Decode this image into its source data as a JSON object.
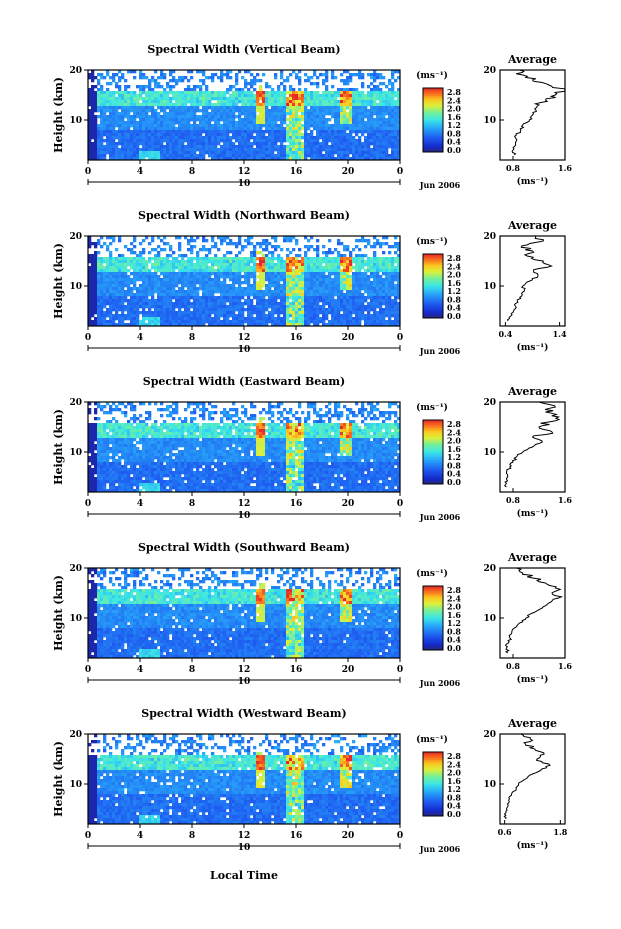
{
  "figure": {
    "xlabel": "Local Time",
    "date_label": "Jun 2006",
    "day_label": "10",
    "height_label": "Height (km)",
    "unit_label": "(ms⁻¹)",
    "average_title": "Average",
    "average_unit": "(ms⁻¹)"
  },
  "chart_data": [
    {
      "type": "heatmap",
      "title": "Spectral Width (Vertical Beam)",
      "ylabel": "Height (km)",
      "x_ticks": [
        "0",
        "4",
        "8",
        "12",
        "16",
        "20",
        "0"
      ],
      "y_ticks": [
        "10",
        "20"
      ],
      "xlim": [
        0,
        24
      ],
      "ylim": [
        2,
        20
      ],
      "colorbar": {
        "unit": "(ms⁻¹)",
        "ticks": [
          "2.8",
          "2.4",
          "2.0",
          "1.6",
          "1.2",
          "0.8",
          "0.4",
          "0.0"
        ],
        "range": [
          0,
          3.0
        ]
      },
      "average": {
        "title": "Average",
        "xlabel": "(ms⁻¹)",
        "x_ticks": [
          "0.8",
          "1.6"
        ],
        "xlim": [
          0.6,
          1.6
        ],
        "y_ticks": [
          "10",
          "20"
        ],
        "ylim": [
          2,
          20
        ],
        "profile": [
          [
            0.82,
            3
          ],
          [
            0.8,
            4
          ],
          [
            0.84,
            5
          ],
          [
            0.86,
            6
          ],
          [
            0.85,
            7
          ],
          [
            0.92,
            8
          ],
          [
            0.95,
            9
          ],
          [
            1.05,
            10
          ],
          [
            1.1,
            11
          ],
          [
            1.15,
            12
          ],
          [
            1.2,
            13
          ],
          [
            1.3,
            14
          ],
          [
            1.45,
            15
          ],
          [
            1.6,
            16
          ],
          [
            1.35,
            17
          ],
          [
            1.1,
            18
          ],
          [
            0.95,
            19
          ],
          [
            0.9,
            20
          ]
        ]
      }
    },
    {
      "type": "heatmap",
      "title": "Spectral Width (Northward Beam)",
      "ylabel": "Height (km)",
      "x_ticks": [
        "0",
        "4",
        "8",
        "12",
        "16",
        "20",
        "0"
      ],
      "y_ticks": [
        "10",
        "20"
      ],
      "xlim": [
        0,
        24
      ],
      "ylim": [
        2,
        20
      ],
      "colorbar": {
        "unit": "(ms⁻¹)",
        "ticks": [
          "2.8",
          "2.4",
          "2.0",
          "1.6",
          "1.2",
          "0.8",
          "0.4",
          "0.0"
        ],
        "range": [
          0,
          3.0
        ]
      },
      "average": {
        "title": "Average",
        "xlabel": "(ms⁻¹)",
        "x_ticks": [
          "0.4",
          "1.4"
        ],
        "xlim": [
          0.3,
          1.5
        ],
        "y_ticks": [
          "10",
          "20"
        ],
        "ylim": [
          2,
          20
        ],
        "profile": [
          [
            0.45,
            3
          ],
          [
            0.5,
            4
          ],
          [
            0.55,
            5
          ],
          [
            0.58,
            6
          ],
          [
            0.62,
            7
          ],
          [
            0.7,
            8
          ],
          [
            0.75,
            9
          ],
          [
            0.72,
            10
          ],
          [
            0.85,
            11
          ],
          [
            1.0,
            12
          ],
          [
            0.92,
            13
          ],
          [
            1.25,
            14
          ],
          [
            1.1,
            15
          ],
          [
            0.8,
            16
          ],
          [
            0.9,
            17
          ],
          [
            0.7,
            18
          ],
          [
            1.1,
            19
          ],
          [
            0.95,
            20
          ]
        ]
      }
    },
    {
      "type": "heatmap",
      "title": "Spectral Width (Eastward Beam)",
      "ylabel": "Height (km)",
      "x_ticks": [
        "0",
        "4",
        "8",
        "12",
        "16",
        "20",
        "0"
      ],
      "y_ticks": [
        "10",
        "20"
      ],
      "xlim": [
        0,
        24
      ],
      "ylim": [
        2,
        20
      ],
      "colorbar": {
        "unit": "(ms⁻¹)",
        "ticks": [
          "2.8",
          "2.4",
          "2.0",
          "1.6",
          "1.2",
          "0.8",
          "0.4",
          "0.0"
        ],
        "range": [
          0,
          3.0
        ]
      },
      "average": {
        "title": "Average",
        "xlabel": "(ms⁻¹)",
        "x_ticks": [
          "0.8",
          "1.6"
        ],
        "xlim": [
          0.6,
          1.6
        ],
        "y_ticks": [
          "10",
          "20"
        ],
        "ylim": [
          2,
          20
        ],
        "profile": [
          [
            0.7,
            3
          ],
          [
            0.68,
            4
          ],
          [
            0.72,
            5
          ],
          [
            0.7,
            6
          ],
          [
            0.75,
            7
          ],
          [
            0.8,
            8
          ],
          [
            0.85,
            9
          ],
          [
            0.95,
            10
          ],
          [
            1.1,
            11
          ],
          [
            1.25,
            12
          ],
          [
            1.1,
            13
          ],
          [
            1.4,
            14
          ],
          [
            1.2,
            15
          ],
          [
            1.35,
            16
          ],
          [
            1.5,
            17
          ],
          [
            1.3,
            18
          ],
          [
            1.45,
            19
          ],
          [
            1.2,
            20
          ]
        ]
      }
    },
    {
      "type": "heatmap",
      "title": "Spectral Width (Southward Beam)",
      "ylabel": "Height (km)",
      "x_ticks": [
        "0",
        "4",
        "8",
        "12",
        "16",
        "20",
        "0"
      ],
      "y_ticks": [
        "10",
        "20"
      ],
      "xlim": [
        0,
        24
      ],
      "ylim": [
        2,
        20
      ],
      "colorbar": {
        "unit": "(ms⁻¹)",
        "ticks": [
          "2.8",
          "2.4",
          "2.0",
          "1.6",
          "1.2",
          "0.8",
          "0.4",
          "0.0"
        ],
        "range": [
          0,
          3.0
        ]
      },
      "average": {
        "title": "Average",
        "xlabel": "(ms⁻¹)",
        "x_ticks": [
          "0.8",
          "1.6"
        ],
        "xlim": [
          0.6,
          1.6
        ],
        "y_ticks": [
          "10",
          "20"
        ],
        "ylim": [
          2,
          20
        ],
        "profile": [
          [
            0.72,
            3
          ],
          [
            0.7,
            4
          ],
          [
            0.73,
            5
          ],
          [
            0.75,
            6
          ],
          [
            0.78,
            7
          ],
          [
            0.82,
            8
          ],
          [
            0.9,
            9
          ],
          [
            1.0,
            10
          ],
          [
            1.1,
            11
          ],
          [
            1.25,
            12
          ],
          [
            1.35,
            13
          ],
          [
            1.5,
            14
          ],
          [
            1.4,
            15
          ],
          [
            1.45,
            16
          ],
          [
            1.3,
            17
          ],
          [
            1.1,
            18
          ],
          [
            0.95,
            19
          ],
          [
            0.85,
            20
          ]
        ]
      }
    },
    {
      "type": "heatmap",
      "title": "Spectral Width (Westward Beam)",
      "ylabel": "Height (km)",
      "x_ticks": [
        "0",
        "4",
        "8",
        "12",
        "16",
        "20",
        "0"
      ],
      "y_ticks": [
        "10",
        "20"
      ],
      "xlim": [
        0,
        24
      ],
      "ylim": [
        2,
        20
      ],
      "colorbar": {
        "unit": "(ms⁻¹)",
        "ticks": [
          "2.8",
          "2.4",
          "2.0",
          "1.6",
          "1.2",
          "0.8",
          "0.4",
          "0.0"
        ],
        "range": [
          0,
          3.0
        ]
      },
      "average": {
        "title": "Average",
        "xlabel": "(ms⁻¹)",
        "x_ticks": [
          "0.6",
          "1.8"
        ],
        "xlim": [
          0.5,
          1.9
        ],
        "y_ticks": [
          "10",
          "20"
        ],
        "ylim": [
          2,
          20
        ],
        "profile": [
          [
            0.62,
            3
          ],
          [
            0.6,
            4
          ],
          [
            0.64,
            5
          ],
          [
            0.66,
            6
          ],
          [
            0.7,
            7
          ],
          [
            0.75,
            8
          ],
          [
            0.85,
            9
          ],
          [
            0.9,
            10
          ],
          [
            1.05,
            11
          ],
          [
            1.2,
            12
          ],
          [
            1.4,
            13
          ],
          [
            1.55,
            14
          ],
          [
            1.3,
            15
          ],
          [
            1.45,
            16
          ],
          [
            1.25,
            17
          ],
          [
            1.05,
            18
          ],
          [
            1.15,
            19
          ],
          [
            0.95,
            20
          ]
        ]
      }
    }
  ]
}
